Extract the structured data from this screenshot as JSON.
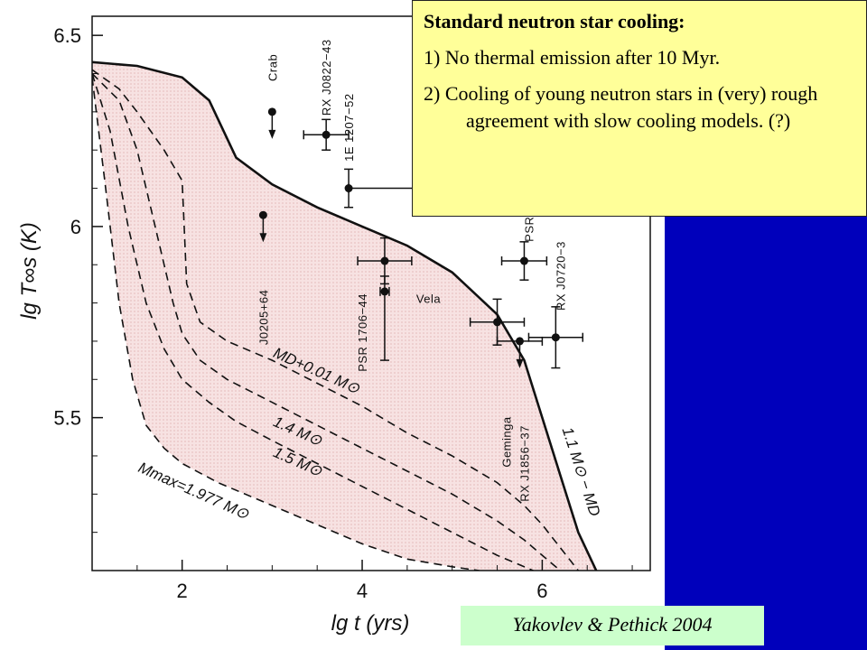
{
  "note": {
    "title": "Standard neutron star cooling:",
    "items": [
      "1) No thermal emission after 10 Myr.",
      "2) Cooling of young neutron stars in (very) rough agreement with slow cooling models. (?)"
    ]
  },
  "credit": "Yakovlev & Pethick 2004",
  "colors": {
    "slide_background": "#0000bb",
    "note_box": "#ffff99",
    "credit_box": "#ccffcc",
    "band_fill": "#f4d8d8"
  },
  "chart_data": {
    "type": "line",
    "xlabel": "lg t    (yrs)",
    "ylabel": "lg T∞s    (K)",
    "xlim": [
      1.0,
      7.2
    ],
    "ylim": [
      5.1,
      6.55
    ],
    "xticks": [
      2,
      4,
      6
    ],
    "yticks": [
      5.5,
      6,
      6.5
    ],
    "series": [
      {
        "name": "1.1 M⊙ − MD",
        "style": "solid",
        "x": [
          1.0,
          1.5,
          2.0,
          2.3,
          2.6,
          3.0,
          3.5,
          4.0,
          4.5,
          5.0,
          5.5,
          5.8,
          6.0,
          6.2,
          6.4,
          6.6
        ],
        "y": [
          6.43,
          6.42,
          6.39,
          6.33,
          6.18,
          6.11,
          6.05,
          6.0,
          5.95,
          5.88,
          5.77,
          5.65,
          5.5,
          5.35,
          5.2,
          5.1
        ]
      },
      {
        "name": "MD+0.01 M⊙",
        "style": "dashed",
        "x": [
          1.0,
          1.3,
          1.5,
          1.8,
          2.0,
          2.05,
          2.2,
          2.5,
          3.0,
          3.5,
          4.0,
          4.5,
          5.0,
          5.5,
          5.8,
          6.0,
          6.2,
          6.4
        ],
        "y": [
          6.41,
          6.36,
          6.3,
          6.2,
          6.12,
          5.85,
          5.75,
          5.7,
          5.65,
          5.59,
          5.53,
          5.46,
          5.4,
          5.33,
          5.27,
          5.22,
          5.16,
          5.1
        ]
      },
      {
        "name": "1.4 M⊙",
        "style": "dashed",
        "x": [
          1.0,
          1.3,
          1.5,
          1.7,
          1.9,
          2.0,
          2.2,
          2.5,
          3.0,
          3.5,
          4.0,
          4.5,
          5.0,
          5.5,
          5.8,
          6.0,
          6.2
        ],
        "y": [
          6.4,
          6.33,
          6.2,
          6.0,
          5.8,
          5.72,
          5.65,
          5.6,
          5.54,
          5.48,
          5.42,
          5.36,
          5.3,
          5.23,
          5.18,
          5.14,
          5.1
        ]
      },
      {
        "name": "1.5 M⊙",
        "style": "dashed",
        "x": [
          1.0,
          1.2,
          1.4,
          1.6,
          1.8,
          2.0,
          2.3,
          2.6,
          3.0,
          3.5,
          4.0,
          4.5,
          5.0,
          5.5,
          5.9
        ],
        "y": [
          6.4,
          6.25,
          6.0,
          5.8,
          5.68,
          5.6,
          5.54,
          5.49,
          5.44,
          5.38,
          5.32,
          5.26,
          5.2,
          5.14,
          5.1
        ]
      },
      {
        "name": "Mmax=1.977 M⊙",
        "style": "dashed",
        "x": [
          1.0,
          1.15,
          1.3,
          1.45,
          1.6,
          1.8,
          2.0,
          2.4,
          3.0,
          3.5,
          4.0,
          4.5,
          5.0,
          5.3
        ],
        "y": [
          6.39,
          6.1,
          5.8,
          5.6,
          5.48,
          5.42,
          5.38,
          5.33,
          5.27,
          5.22,
          5.17,
          5.13,
          5.11,
          5.1
        ]
      }
    ],
    "observations": [
      {
        "name": "Crab",
        "x": 3.0,
        "y": 6.3,
        "upper_limit": true
      },
      {
        "name": "RX J0822−43",
        "x": 3.6,
        "y": 6.24,
        "xerr": 0.25,
        "yerr": 0.04
      },
      {
        "name": "1E 1207−52",
        "x": 3.85,
        "y": 6.1,
        "xerr": [
          0.0,
          0.75
        ],
        "yerr": 0.05
      },
      {
        "name": "J0205+64",
        "x": 2.9,
        "y": 6.03,
        "upper_limit": true
      },
      {
        "name": "PSR 1706−44",
        "x": 4.25,
        "y": 5.91,
        "xerr": 0.3,
        "yerr": 0.06
      },
      {
        "name": "Vela",
        "x": 4.25,
        "y": 5.83,
        "xerr": 0.05,
        "yerr": [
          0.18,
          0.04
        ]
      },
      {
        "name": "PSR",
        "x": 5.8,
        "y": 5.91,
        "xerr": 0.25,
        "yerr": 0.05
      },
      {
        "name": "RX J0720−3",
        "x": 6.15,
        "y": 5.71,
        "xerr": 0.3,
        "yerr": 0.08
      },
      {
        "name": "Geminga",
        "x": 5.5,
        "y": 5.75,
        "xerr": 0.3,
        "yerr": 0.06
      },
      {
        "name": "RX J1856−37",
        "x": 5.75,
        "y": 5.7,
        "xerr": 0.25,
        "upper_limit": true
      }
    ]
  }
}
